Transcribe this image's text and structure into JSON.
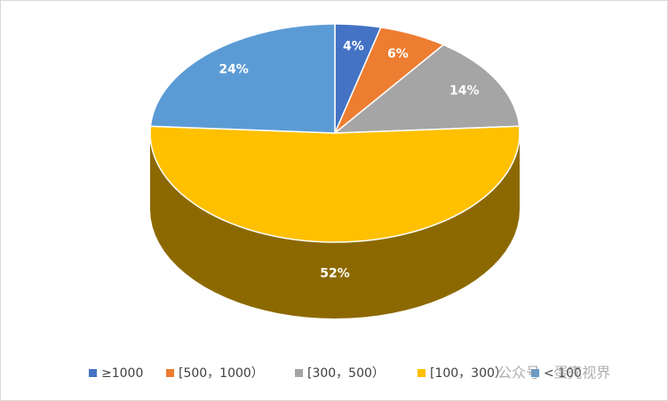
{
  "chart_data": {
    "type": "pie",
    "categories": [
      "≥1000",
      "[500，1000）",
      "[300，500）",
      "[100，300）",
      "< 100"
    ],
    "values": [
      4,
      6,
      14,
      52,
      24
    ],
    "value_labels": [
      "4%",
      "6%",
      "14%",
      "52%",
      "24%"
    ],
    "colors": [
      "#4472c4",
      "#ed7d31",
      "#a5a5a5",
      "#ffc000",
      "#5b9bd5"
    ],
    "legend": "bottom"
  },
  "watermark": "公众号 · 蛋壳视界"
}
